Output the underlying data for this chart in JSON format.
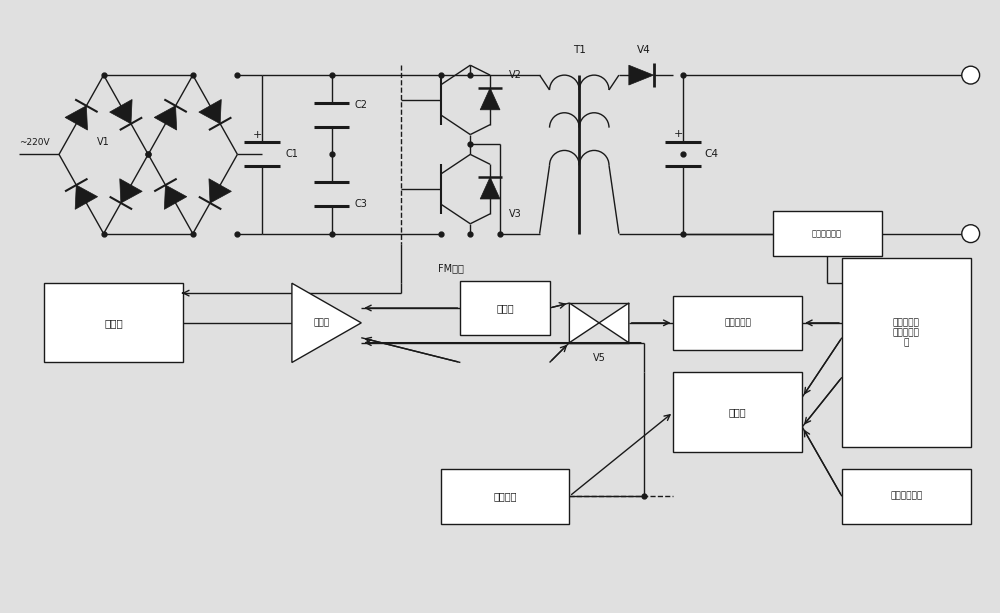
{
  "title": "",
  "bg_color": "#e0e0e0",
  "line_color": "#1a1a1a",
  "figsize": [
    10.0,
    6.13
  ],
  "labels": {
    "v220": "~220V",
    "V1": "V1",
    "C1": "C1",
    "C2": "C2",
    "C3": "C3",
    "V2": "V2",
    "V3": "V3",
    "T1": "T1",
    "V4": "V4",
    "C4": "C4",
    "FM": "FM信号",
    "controller": "控制器",
    "amplifier": "放大器",
    "adder": "加法器",
    "V5": "V5",
    "op_amp": "运算放大器",
    "mag_sample": "磁控管平均\n电流取样电\n路",
    "current_sample": "电流取样电阻",
    "comparator": "比较器",
    "current_preset": "电流预置",
    "filament_preset": "全通灯丝预置"
  }
}
